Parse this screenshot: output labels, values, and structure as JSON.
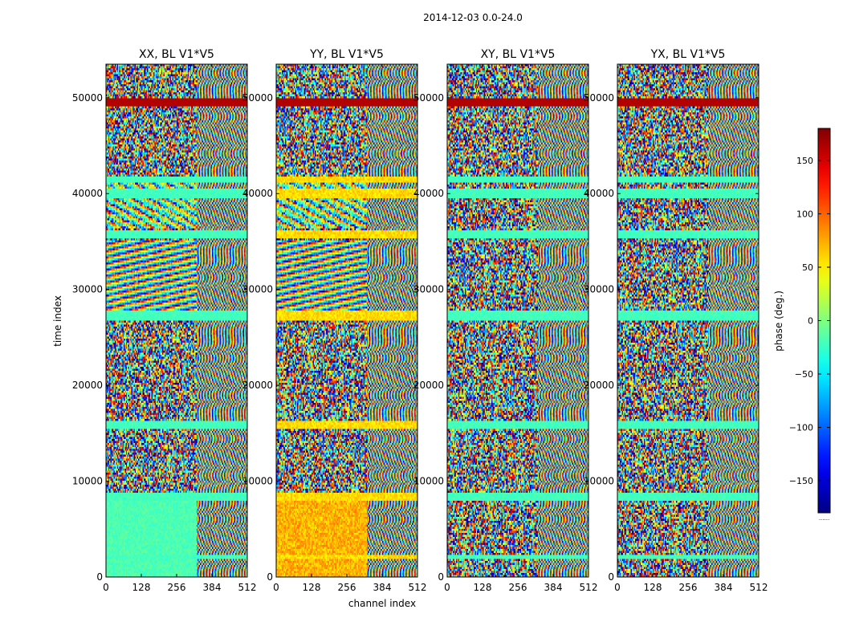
{
  "chart_data": {
    "type": "heatmap",
    "suptitle": "2014-12-03 0.0-24.0",
    "xlabel": "channel index",
    "ylabel": "time index",
    "xlim": [
      0,
      512
    ],
    "ylim": [
      0,
      53500
    ],
    "xticks": [
      0,
      128,
      256,
      384,
      512
    ],
    "yticks": [
      0,
      10000,
      20000,
      30000,
      40000,
      50000
    ],
    "panels": [
      {
        "name": "XX",
        "title": "XX, BL V1*V5",
        "mode": "xx"
      },
      {
        "name": "YY",
        "title": "YY, BL V1*V5",
        "mode": "yy"
      },
      {
        "name": "XY",
        "title": "XY, BL V1*V5",
        "mode": "xy"
      },
      {
        "name": "YX",
        "title": "YX, BL V1*V5",
        "mode": "yx"
      }
    ],
    "colorbar": {
      "label": "phase (deg.)",
      "range": [
        -180,
        180
      ],
      "ticks": [
        -150,
        -100,
        -50,
        0,
        50,
        100,
        150
      ],
      "colormap": "jet",
      "extra_label": "......"
    },
    "flagged_bands": [
      [
        49200,
        50000
      ],
      [
        41200,
        42000
      ],
      [
        39700,
        40600
      ],
      [
        35500,
        36300
      ],
      [
        26800,
        28000
      ],
      [
        15600,
        16400
      ],
      [
        8000,
        8800
      ],
      [
        1900,
        2400
      ]
    ]
  }
}
